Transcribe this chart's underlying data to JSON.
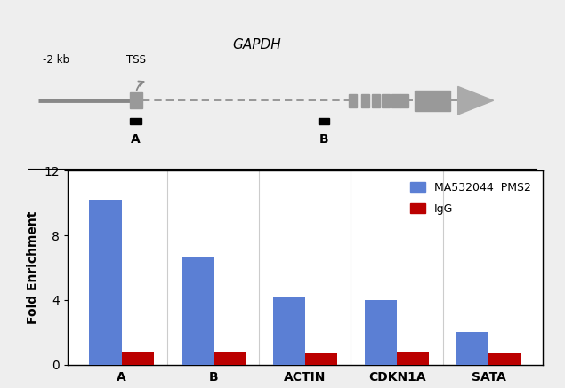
{
  "categories": [
    "A",
    "B",
    "ACTIN",
    "CDKN1A",
    "SATA"
  ],
  "pms2_values": [
    10.2,
    6.7,
    4.2,
    4.0,
    2.0
  ],
  "igg_values": [
    0.75,
    0.75,
    0.7,
    0.75,
    0.7
  ],
  "bar_color_pms2": "#5B7FD4",
  "bar_color_igg": "#BB0000",
  "ylabel": "Fold Enrichment",
  "ylim": [
    0,
    12
  ],
  "yticks": [
    0,
    4,
    8,
    12
  ],
  "legend_pms2": "MA532044  PMS2",
  "legend_igg": "IgG",
  "gene_label": "GAPDH",
  "tss_label": "TSS",
  "kb_label": "-2 kb",
  "region_a": "A",
  "region_b": "B",
  "bar_width": 0.35,
  "figure_bg": "#eeeeee",
  "chart_bg": "#ffffff"
}
